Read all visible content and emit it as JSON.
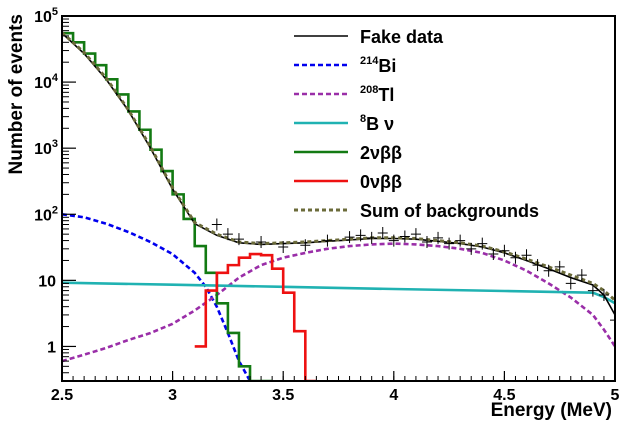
{
  "chart_data": {
    "type": "line",
    "xlabel": "Energy (MeV)",
    "ylabel": "Number of events",
    "xlim": [
      2.5,
      5.0
    ],
    "ylim": [
      0.3,
      100000
    ],
    "yscale": "log",
    "grid": false,
    "legend_position": "top-right",
    "x_ticks": [
      {
        "value": 2.5,
        "label": "2.5"
      },
      {
        "value": 3.0,
        "label": "3"
      },
      {
        "value": 3.5,
        "label": "3.5"
      },
      {
        "value": 4.0,
        "label": "4"
      },
      {
        "value": 4.5,
        "label": "4.5"
      },
      {
        "value": 5.0,
        "label": "5"
      }
    ],
    "y_ticks": [
      {
        "value": 1,
        "label": "1"
      },
      {
        "value": 10,
        "label": "10"
      },
      {
        "value": 100,
        "base": "10",
        "exp": "2"
      },
      {
        "value": 1000,
        "base": "10",
        "exp": "3"
      },
      {
        "value": 10000,
        "base": "10",
        "exp": "4"
      },
      {
        "value": 100000,
        "base": "10",
        "exp": "5"
      }
    ],
    "legend": [
      {
        "id": "fake",
        "text": "Fake data"
      },
      {
        "id": "bi214",
        "sup": "214",
        "text": "Bi"
      },
      {
        "id": "tl208",
        "sup": "208",
        "text": "Tl"
      },
      {
        "id": "b8",
        "sup": "8",
        "text": "B ν"
      },
      {
        "id": "nu2",
        "text": "2νββ"
      },
      {
        "id": "nu0",
        "text": "0νββ"
      },
      {
        "id": "sum",
        "text": "Sum of backgrounds"
      }
    ],
    "series": [
      {
        "id": "bi214",
        "color": "#0000ee",
        "style": "dashed",
        "points": [
          [
            2.5,
            100
          ],
          [
            2.6,
            90
          ],
          [
            2.7,
            72
          ],
          [
            2.8,
            54
          ],
          [
            2.9,
            38
          ],
          [
            3.0,
            25
          ],
          [
            3.05,
            18
          ],
          [
            3.1,
            13
          ],
          [
            3.15,
            8
          ],
          [
            3.2,
            4
          ],
          [
            3.25,
            1.6
          ],
          [
            3.3,
            0.6
          ],
          [
            3.35,
            0.3
          ]
        ]
      },
      {
        "id": "tl208",
        "color": "#9a2ea8",
        "style": "dashed",
        "points": [
          [
            2.5,
            0.6
          ],
          [
            2.6,
            0.75
          ],
          [
            2.7,
            0.95
          ],
          [
            2.8,
            1.25
          ],
          [
            2.9,
            1.6
          ],
          [
            3.0,
            2.2
          ],
          [
            3.1,
            3.5
          ],
          [
            3.2,
            6
          ],
          [
            3.3,
            11
          ],
          [
            3.4,
            17
          ],
          [
            3.5,
            22
          ],
          [
            3.6,
            26
          ],
          [
            3.7,
            30
          ],
          [
            3.8,
            33
          ],
          [
            3.9,
            35
          ],
          [
            4.0,
            36
          ],
          [
            4.1,
            35
          ],
          [
            4.2,
            33
          ],
          [
            4.3,
            30
          ],
          [
            4.4,
            26
          ],
          [
            4.5,
            20
          ],
          [
            4.6,
            14
          ],
          [
            4.7,
            9
          ],
          [
            4.8,
            5.5
          ],
          [
            4.9,
            3
          ],
          [
            4.95,
            1.8
          ],
          [
            5.0,
            1.0
          ]
        ]
      },
      {
        "id": "b8",
        "color": "#20b2b2",
        "style": "solid",
        "points": [
          [
            2.5,
            9.2
          ],
          [
            3.0,
            8.6
          ],
          [
            3.5,
            8.0
          ],
          [
            4.0,
            7.4
          ],
          [
            4.5,
            6.9
          ],
          [
            4.9,
            6.5
          ],
          [
            4.95,
            5.6
          ],
          [
            5.0,
            4.5
          ]
        ]
      },
      {
        "id": "nu2",
        "color": "#137a13",
        "style": "step",
        "edges": [
          2.5,
          2.55,
          2.6,
          2.65,
          2.7,
          2.75,
          2.8,
          2.85,
          2.9,
          2.95,
          3.0,
          3.05,
          3.1,
          3.15,
          3.2,
          3.25,
          3.3,
          3.35,
          3.4,
          3.45
        ],
        "values": [
          55000,
          40000,
          27000,
          18000,
          11000,
          6500,
          3600,
          1900,
          950,
          450,
          200,
          85,
          33,
          13,
          4.5,
          1.6,
          0.5,
          0.3,
          0.3
        ]
      },
      {
        "id": "nu0",
        "color": "#ee1111",
        "style": "step",
        "edges": [
          3.1,
          3.15,
          3.2,
          3.25,
          3.3,
          3.35,
          3.4,
          3.45,
          3.5,
          3.55,
          3.6,
          3.65
        ],
        "values": [
          1.0,
          7.0,
          13,
          17,
          22,
          25,
          24,
          15,
          6.5,
          1.7,
          0.3
        ]
      },
      {
        "id": "sum",
        "color": "#6b6b3a",
        "style": "dashed",
        "points": [
          [
            2.5,
            56000
          ],
          [
            2.6,
            28000
          ],
          [
            2.7,
            11500
          ],
          [
            2.8,
            3800
          ],
          [
            2.9,
            1050
          ],
          [
            3.0,
            250
          ],
          [
            3.1,
            75
          ],
          [
            3.2,
            50
          ],
          [
            3.3,
            38
          ],
          [
            3.4,
            36
          ],
          [
            3.5,
            37
          ],
          [
            3.6,
            38
          ],
          [
            3.7,
            40
          ],
          [
            3.8,
            42
          ],
          [
            3.9,
            44
          ],
          [
            4.0,
            44
          ],
          [
            4.1,
            43
          ],
          [
            4.2,
            40
          ],
          [
            4.3,
            37
          ],
          [
            4.4,
            33
          ],
          [
            4.5,
            27
          ],
          [
            4.6,
            21
          ],
          [
            4.7,
            16
          ],
          [
            4.8,
            12
          ],
          [
            4.9,
            9
          ],
          [
            4.95,
            7
          ],
          [
            5.0,
            5
          ]
        ]
      },
      {
        "id": "fake",
        "color": "#000000",
        "style": "solid",
        "points": [
          [
            2.5,
            55000
          ],
          [
            2.6,
            27000
          ],
          [
            2.7,
            11000
          ],
          [
            2.8,
            3700
          ],
          [
            2.9,
            1000
          ],
          [
            3.0,
            240
          ],
          [
            3.1,
            72
          ],
          [
            3.2,
            48
          ],
          [
            3.3,
            37
          ],
          [
            3.4,
            35
          ],
          [
            3.5,
            36
          ],
          [
            3.6,
            37
          ],
          [
            3.7,
            39
          ],
          [
            3.8,
            41
          ],
          [
            3.9,
            43
          ],
          [
            4.0,
            43
          ],
          [
            4.1,
            42
          ],
          [
            4.2,
            39
          ],
          [
            4.3,
            36
          ],
          [
            4.4,
            32
          ],
          [
            4.5,
            26
          ],
          [
            4.6,
            20
          ],
          [
            4.7,
            15
          ],
          [
            4.8,
            11
          ],
          [
            4.9,
            8.5
          ],
          [
            4.95,
            6
          ],
          [
            5.0,
            3
          ]
        ]
      }
    ],
    "fake_data_points": [
      [
        3.2,
        70
      ],
      [
        3.25,
        50
      ],
      [
        3.3,
        42
      ],
      [
        3.4,
        38
      ],
      [
        3.5,
        32
      ],
      [
        3.6,
        34
      ],
      [
        3.7,
        40
      ],
      [
        3.8,
        45
      ],
      [
        3.85,
        48
      ],
      [
        3.9,
        44
      ],
      [
        3.95,
        52
      ],
      [
        4.0,
        40
      ],
      [
        4.05,
        46
      ],
      [
        4.1,
        50
      ],
      [
        4.15,
        38
      ],
      [
        4.2,
        44
      ],
      [
        4.25,
        36
      ],
      [
        4.3,
        40
      ],
      [
        4.35,
        30
      ],
      [
        4.4,
        36
      ],
      [
        4.45,
        25
      ],
      [
        4.5,
        28
      ],
      [
        4.55,
        22
      ],
      [
        4.6,
        24
      ],
      [
        4.65,
        17
      ],
      [
        4.7,
        14
      ],
      [
        4.75,
        16
      ],
      [
        4.8,
        9
      ],
      [
        4.85,
        12
      ],
      [
        4.9,
        7
      ],
      [
        4.95,
        6
      ],
      [
        5.0,
        2.5
      ]
    ]
  }
}
